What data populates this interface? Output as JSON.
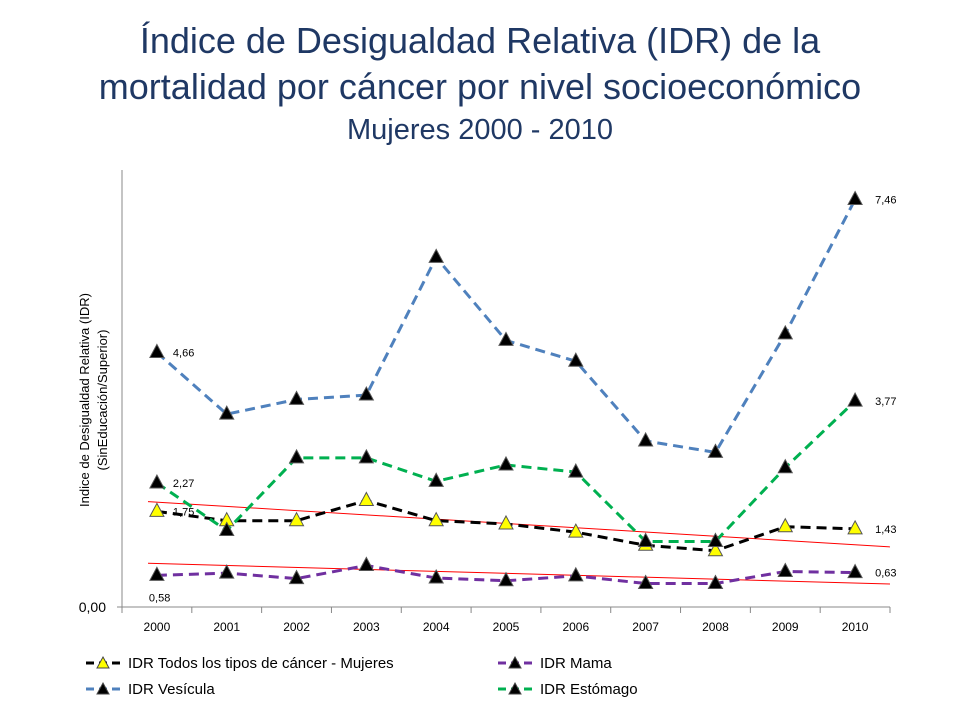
{
  "title": {
    "line1": "Índice de Desigualdad Relativa (IDR) de la",
    "line2": "mortalidad por cáncer por nivel socioeconómico",
    "subtitle": "Mujeres 2000 - 2010"
  },
  "chart_data": {
    "type": "line",
    "title": "Índice de Desigualdad Relativa (IDR) de la mortalidad por cáncer por nivel socioeconómico",
    "subtitle": "Mujeres 2000 - 2010",
    "ylabel_line1": "Indice de Desigualdad Relativa (IDR)",
    "ylabel_line2": "(SinEducación/Superior)",
    "xlabel": "",
    "x": [
      "2000",
      "2001",
      "2002",
      "2003",
      "2004",
      "2005",
      "2006",
      "2007",
      "2008",
      "2009",
      "2010"
    ],
    "ylim": [
      0,
      8
    ],
    "y_tick_label": "0,00",
    "grid": false,
    "legend_position": "bottom",
    "series": [
      {
        "name": "IDR Todos los tipos de cáncer - Mujeres",
        "color": "#000000",
        "marker_fill": "#ffff00",
        "values": [
          1.75,
          1.58,
          1.58,
          1.95,
          1.58,
          1.52,
          1.37,
          1.13,
          1.03,
          1.47,
          1.43
        ],
        "labels": {
          "0": "1,75",
          "10": "1,43"
        }
      },
      {
        "name": "IDR Vesícula",
        "color": "#4f81bd",
        "marker_fill": "#000000",
        "values": [
          4.66,
          3.53,
          3.8,
          3.88,
          6.4,
          4.88,
          4.5,
          3.04,
          2.83,
          5.0,
          7.46
        ],
        "labels": {
          "0": "4,66",
          "10": "7,46"
        }
      },
      {
        "name": "IDR Mama",
        "color": "#7030a0",
        "marker_fill": "#000000",
        "values": [
          0.58,
          0.62,
          0.52,
          0.76,
          0.53,
          0.48,
          0.57,
          0.43,
          0.43,
          0.65,
          0.63
        ],
        "labels": {
          "0": "0,58",
          "10": "0,63"
        }
      },
      {
        "name": "IDR Estómago",
        "color": "#00b050",
        "marker_fill": "#000000",
        "values": [
          2.27,
          1.4,
          2.73,
          2.73,
          2.3,
          2.6,
          2.47,
          1.2,
          1.2,
          2.55,
          3.77
        ],
        "labels": {
          "0": "2,27",
          "10": "3,77"
        }
      }
    ],
    "trendlines": [
      {
        "series": "IDR Todos los tipos de cáncer - Mujeres",
        "color": "#ff0000",
        "start": 1.93,
        "end": 1.1
      },
      {
        "series": "IDR Mama",
        "color": "#ff0000",
        "start": 0.8,
        "end": 0.42
      }
    ]
  },
  "legend": {
    "item1": "IDR Todos los tipos de cáncer - Mujeres",
    "item2": "IDR Mama",
    "item3": "IDR Vesícula",
    "item4": "IDR Estómago"
  }
}
